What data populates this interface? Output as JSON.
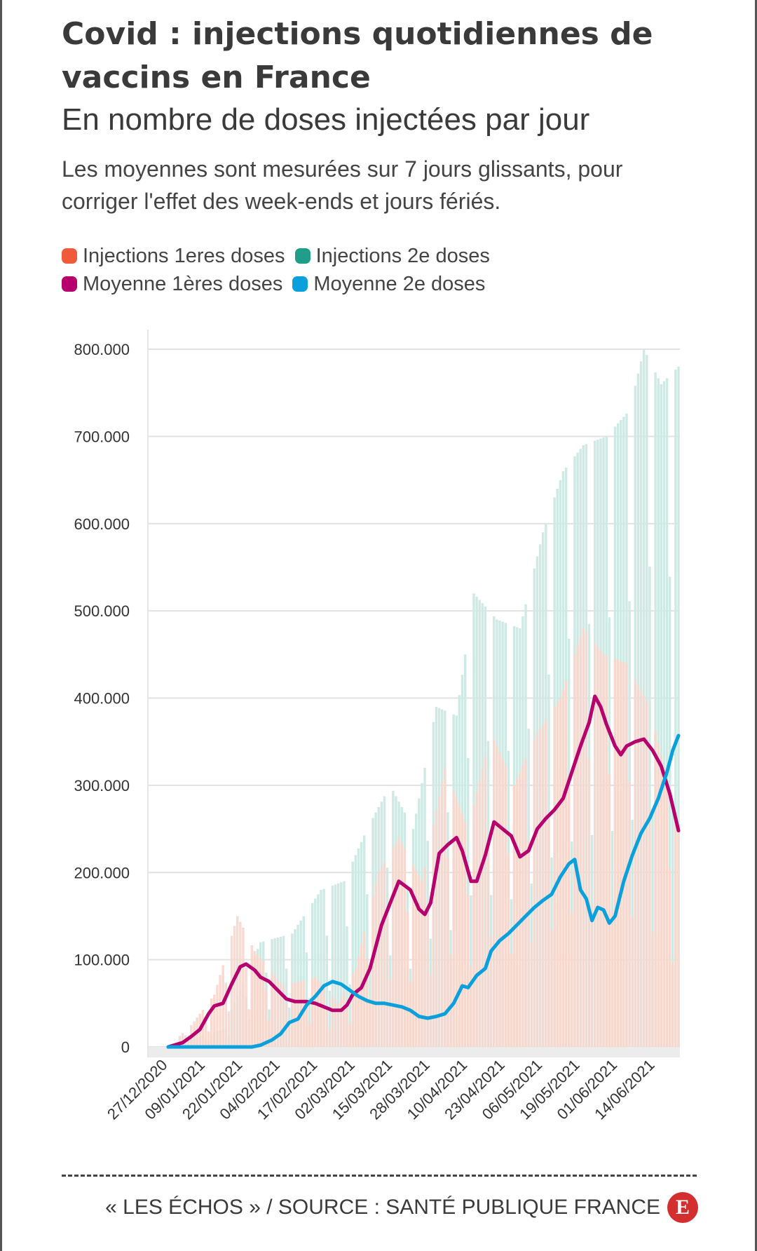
{
  "header": {
    "title": "Covid : injections quotidiennes de vaccins en France",
    "subtitle": "En nombre de doses injectées par jour",
    "note": "Les moyennes sont mesurées sur 7 jours glissants, pour corriger l'effet des week-ends et jours fériés."
  },
  "legend": [
    {
      "label": "Injections 1eres doses",
      "color": "#ef5a3a"
    },
    {
      "label": "Injections 2e doses",
      "color": "#1f9e89"
    },
    {
      "label": "Moyenne 1ères doses",
      "color": "#b5006e"
    },
    {
      "label": "Moyenne 2e doses",
      "color": "#0aa0dc"
    }
  ],
  "footer": {
    "credit": "« LES ÉCHOS » / SOURCE : SANTÉ PUBLIQUE FRANCE",
    "logo_letter": "E"
  },
  "chart_data": {
    "type": "bar",
    "y_ticks": [
      "800.000",
      "700.000",
      "600.000",
      "500.000",
      "400.000",
      "300.000",
      "200.000",
      "100.000",
      "0"
    ],
    "ylim": [
      0,
      800000
    ],
    "x_tick_labels": [
      "27/12/2020",
      "09/01/2021",
      "22/01/2021",
      "04/02/2021",
      "17/02/2021",
      "02/03/2021",
      "15/03/2021",
      "28/03/2021",
      "10/04/2021",
      "23/04/2021",
      "06/05/2021",
      "19/05/2021",
      "01/06/2021",
      "14/06/2021"
    ],
    "x_start": "2020-12-27",
    "x_end": "2021-06-22",
    "bar_colors": {
      "first": "#f9d6cc",
      "second": "#cfeae4"
    },
    "series": [
      {
        "name": "Moyenne 1ères doses",
        "color": "#b5006e",
        "points": [
          [
            "2020-12-27",
            0
          ],
          [
            "2021-01-01",
            5000
          ],
          [
            "2021-01-04",
            12000
          ],
          [
            "2021-01-07",
            20000
          ],
          [
            "2021-01-10",
            38000
          ],
          [
            "2021-01-12",
            47000
          ],
          [
            "2021-01-15",
            50000
          ],
          [
            "2021-01-18",
            72000
          ],
          [
            "2021-01-21",
            92000
          ],
          [
            "2021-01-23",
            95000
          ],
          [
            "2021-01-26",
            88000
          ],
          [
            "2021-01-28",
            80000
          ],
          [
            "2021-01-31",
            75000
          ],
          [
            "2021-02-03",
            65000
          ],
          [
            "2021-02-06",
            55000
          ],
          [
            "2021-02-09",
            52000
          ],
          [
            "2021-02-13",
            52000
          ],
          [
            "2021-02-16",
            50000
          ],
          [
            "2021-02-19",
            46000
          ],
          [
            "2021-02-22",
            42000
          ],
          [
            "2021-02-25",
            42000
          ],
          [
            "2021-02-27",
            48000
          ],
          [
            "2021-03-01",
            60000
          ],
          [
            "2021-03-04",
            68000
          ],
          [
            "2021-03-07",
            90000
          ],
          [
            "2021-03-09",
            115000
          ],
          [
            "2021-03-11",
            140000
          ],
          [
            "2021-03-14",
            165000
          ],
          [
            "2021-03-17",
            190000
          ],
          [
            "2021-03-19",
            185000
          ],
          [
            "2021-03-21",
            180000
          ],
          [
            "2021-03-24",
            158000
          ],
          [
            "2021-03-26",
            152000
          ],
          [
            "2021-03-28",
            165000
          ],
          [
            "2021-03-31",
            222000
          ],
          [
            "2021-04-03",
            232000
          ],
          [
            "2021-04-06",
            240000
          ],
          [
            "2021-04-08",
            225000
          ],
          [
            "2021-04-11",
            190000
          ],
          [
            "2021-04-13",
            190000
          ],
          [
            "2021-04-16",
            220000
          ],
          [
            "2021-04-19",
            258000
          ],
          [
            "2021-04-22",
            250000
          ],
          [
            "2021-04-25",
            242000
          ],
          [
            "2021-04-28",
            218000
          ],
          [
            "2021-05-01",
            225000
          ],
          [
            "2021-05-04",
            250000
          ],
          [
            "2021-05-07",
            262000
          ],
          [
            "2021-05-10",
            272000
          ],
          [
            "2021-05-13",
            285000
          ],
          [
            "2021-05-16",
            315000
          ],
          [
            "2021-05-19",
            345000
          ],
          [
            "2021-05-22",
            372000
          ],
          [
            "2021-05-24",
            402000
          ],
          [
            "2021-05-26",
            390000
          ],
          [
            "2021-05-28",
            370000
          ],
          [
            "2021-05-31",
            345000
          ],
          [
            "2021-06-02",
            335000
          ],
          [
            "2021-06-04",
            345000
          ],
          [
            "2021-06-07",
            350000
          ],
          [
            "2021-06-10",
            353000
          ],
          [
            "2021-06-13",
            340000
          ],
          [
            "2021-06-16",
            322000
          ],
          [
            "2021-06-19",
            290000
          ],
          [
            "2021-06-22",
            248000
          ]
        ]
      },
      {
        "name": "Moyenne 2e doses",
        "color": "#0aa0dc",
        "points": [
          [
            "2020-12-27",
            0
          ],
          [
            "2021-01-10",
            0
          ],
          [
            "2021-01-25",
            0
          ],
          [
            "2021-01-28",
            2000
          ],
          [
            "2021-02-01",
            8000
          ],
          [
            "2021-02-04",
            15000
          ],
          [
            "2021-02-07",
            28000
          ],
          [
            "2021-02-10",
            32000
          ],
          [
            "2021-02-13",
            48000
          ],
          [
            "2021-02-16",
            58000
          ],
          [
            "2021-02-19",
            70000
          ],
          [
            "2021-02-22",
            75000
          ],
          [
            "2021-02-25",
            72000
          ],
          [
            "2021-02-28",
            65000
          ],
          [
            "2021-03-03",
            58000
          ],
          [
            "2021-03-06",
            53000
          ],
          [
            "2021-03-09",
            50000
          ],
          [
            "2021-03-12",
            50000
          ],
          [
            "2021-03-15",
            48000
          ],
          [
            "2021-03-18",
            46000
          ],
          [
            "2021-03-21",
            42000
          ],
          [
            "2021-03-24",
            35000
          ],
          [
            "2021-03-27",
            33000
          ],
          [
            "2021-03-30",
            35000
          ],
          [
            "2021-04-02",
            38000
          ],
          [
            "2021-04-05",
            50000
          ],
          [
            "2021-04-08",
            70000
          ],
          [
            "2021-04-10",
            68000
          ],
          [
            "2021-04-13",
            82000
          ],
          [
            "2021-04-16",
            90000
          ],
          [
            "2021-04-18",
            110000
          ],
          [
            "2021-04-21",
            122000
          ],
          [
            "2021-04-24",
            130000
          ],
          [
            "2021-04-27",
            140000
          ],
          [
            "2021-04-30",
            150000
          ],
          [
            "2021-05-03",
            160000
          ],
          [
            "2021-05-06",
            168000
          ],
          [
            "2021-05-09",
            175000
          ],
          [
            "2021-05-12",
            195000
          ],
          [
            "2021-05-15",
            210000
          ],
          [
            "2021-05-17",
            215000
          ],
          [
            "2021-05-19",
            180000
          ],
          [
            "2021-05-21",
            170000
          ],
          [
            "2021-05-23",
            145000
          ],
          [
            "2021-05-25",
            160000
          ],
          [
            "2021-05-27",
            157000
          ],
          [
            "2021-05-29",
            142000
          ],
          [
            "2021-05-31",
            150000
          ],
          [
            "2021-06-03",
            190000
          ],
          [
            "2021-06-06",
            220000
          ],
          [
            "2021-06-09",
            245000
          ],
          [
            "2021-06-12",
            262000
          ],
          [
            "2021-06-15",
            285000
          ],
          [
            "2021-06-18",
            315000
          ],
          [
            "2021-06-20",
            340000
          ],
          [
            "2021-06-22",
            357000
          ]
        ]
      }
    ],
    "bar_envelopes": {
      "first": [
        [
          "2020-12-27",
          0
        ],
        [
          "2021-01-04",
          25000
        ],
        [
          "2021-01-12",
          60000
        ],
        [
          "2021-01-20",
          150000
        ],
        [
          "2021-01-26",
          110000
        ],
        [
          "2021-02-05",
          70000
        ],
        [
          "2021-02-16",
          80000
        ],
        [
          "2021-02-24",
          50000
        ],
        [
          "2021-03-02",
          90000
        ],
        [
          "2021-03-10",
          200000
        ],
        [
          "2021-03-17",
          240000
        ],
        [
          "2021-03-25",
          190000
        ],
        [
          "2021-04-02",
          320000
        ],
        [
          "2021-04-10",
          250000
        ],
        [
          "2021-04-18",
          360000
        ],
        [
          "2021-04-26",
          300000
        ],
        [
          "2021-05-04",
          360000
        ],
        [
          "2021-05-12",
          400000
        ],
        [
          "2021-05-20",
          480000
        ],
        [
          "2021-05-27",
          450000
        ],
        [
          "2021-06-04",
          440000
        ],
        [
          "2021-06-12",
          390000
        ],
        [
          "2021-06-22",
          250000
        ]
      ],
      "second": [
        [
          "2020-12-27",
          0
        ],
        [
          "2021-01-15",
          20000
        ],
        [
          "2021-01-28",
          120000
        ],
        [
          "2021-02-08",
          130000
        ],
        [
          "2021-02-18",
          180000
        ],
        [
          "2021-02-26",
          190000
        ],
        [
          "2021-03-06",
          250000
        ],
        [
          "2021-03-14",
          300000
        ],
        [
          "2021-03-22",
          250000
        ],
        [
          "2021-03-30",
          390000
        ],
        [
          "2021-04-06",
          380000
        ],
        [
          "2021-04-12",
          520000
        ],
        [
          "2021-04-20",
          490000
        ],
        [
          "2021-04-28",
          480000
        ],
        [
          "2021-05-06",
          590000
        ],
        [
          "2021-05-13",
          660000
        ],
        [
          "2021-05-20",
          690000
        ],
        [
          "2021-05-28",
          700000
        ],
        [
          "2021-06-05",
          730000
        ],
        [
          "2021-06-10",
          800000
        ],
        [
          "2021-06-16",
          760000
        ],
        [
          "2021-06-22",
          780000
        ]
      ]
    }
  }
}
